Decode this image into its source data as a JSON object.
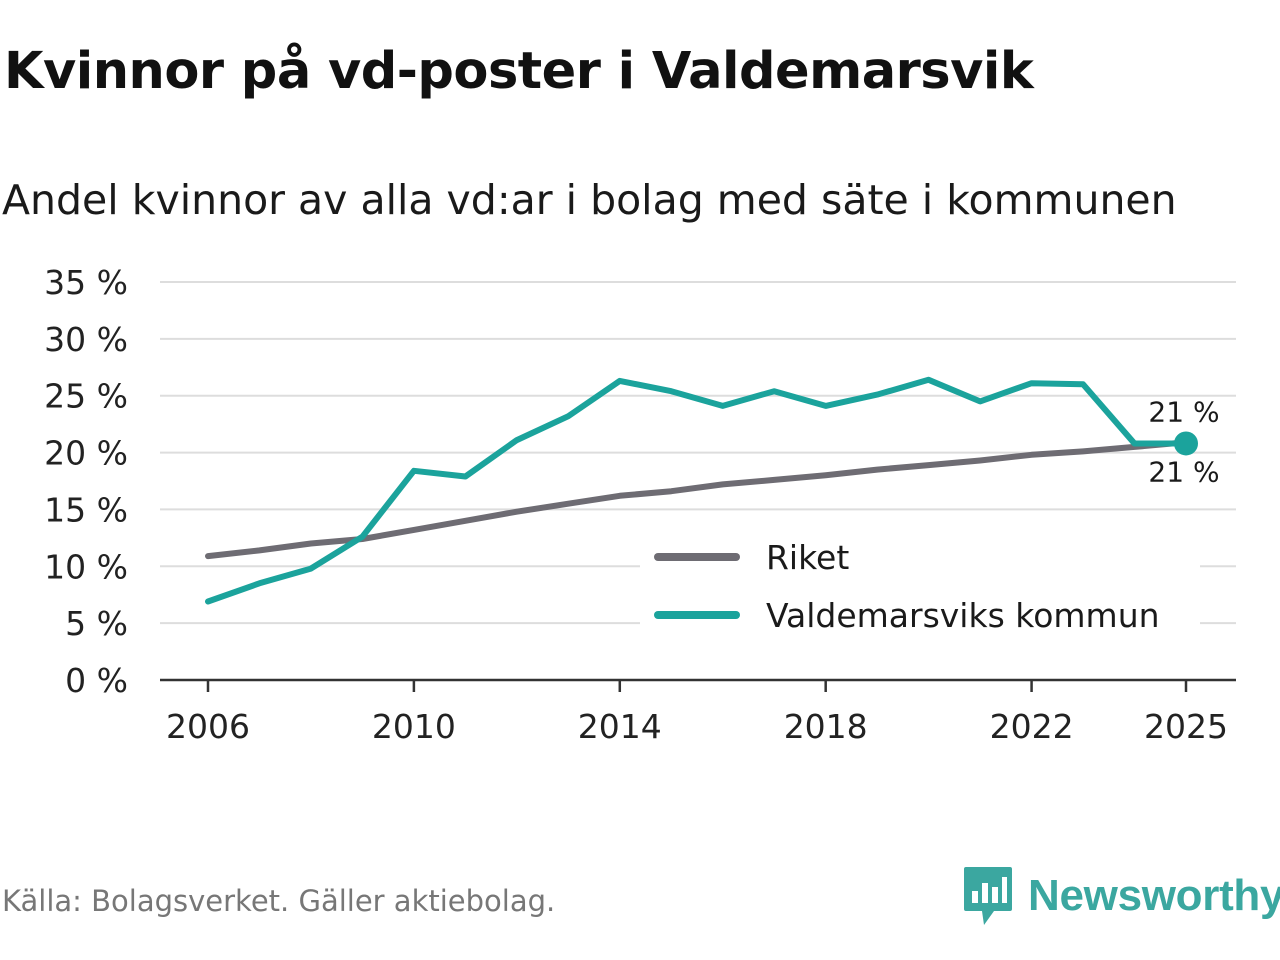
{
  "header": {
    "title": "Kvinnor på vd-poster i Valdemarsvik",
    "subtitle": "Andel kvinnor av alla vd:ar i bolag med säte i kommunen"
  },
  "footer": {
    "source": "Källa: Bolagsverket. Gäller aktiebolag.",
    "brand": "Newsworthy"
  },
  "colors": {
    "riket": "#6e6c73",
    "kommun": "#1ba39c",
    "grid": "#dddddd",
    "axis": "#333333",
    "brand": "#3ba7a0"
  },
  "chart_data": {
    "type": "line",
    "title": "Kvinnor på vd-poster i Valdemarsvik",
    "subtitle": "Andel kvinnor av alla vd:ar i bolag med säte i kommunen",
    "xlabel": "",
    "ylabel": "",
    "x": [
      2006,
      2007,
      2008,
      2009,
      2010,
      2011,
      2012,
      2013,
      2014,
      2015,
      2016,
      2017,
      2018,
      2019,
      2020,
      2021,
      2022,
      2023,
      2024,
      2025
    ],
    "x_ticks": [
      2006,
      2010,
      2014,
      2018,
      2022,
      2025
    ],
    "y_ticks": [
      0,
      5,
      10,
      15,
      20,
      25,
      30,
      35
    ],
    "y_tick_labels": [
      "0 %",
      "5 %",
      "10 %",
      "15 %",
      "20 %",
      "25 %",
      "30 %",
      "35 %"
    ],
    "xlim": [
      2006,
      2025
    ],
    "ylim": [
      0,
      35
    ],
    "grid": true,
    "legend_position": "bottom-right",
    "series": [
      {
        "key": "riket",
        "name": "Riket",
        "values": [
          10.9,
          11.4,
          12.0,
          12.4,
          13.2,
          14.0,
          14.8,
          15.5,
          16.2,
          16.6,
          17.2,
          17.6,
          18.0,
          18.5,
          18.9,
          19.3,
          19.8,
          20.1,
          20.5,
          20.9
        ]
      },
      {
        "key": "kommun",
        "name": "Valdemarsviks kommun",
        "values": [
          6.9,
          8.5,
          9.8,
          12.6,
          18.4,
          17.9,
          21.1,
          23.2,
          26.3,
          25.4,
          24.1,
          25.4,
          24.1,
          25.1,
          26.4,
          24.5,
          26.1,
          26.0,
          20.8,
          20.8
        ]
      }
    ],
    "end_labels": [
      {
        "series": "kommun",
        "text": "21 %"
      },
      {
        "series": "riket",
        "text": "21 %"
      }
    ]
  }
}
